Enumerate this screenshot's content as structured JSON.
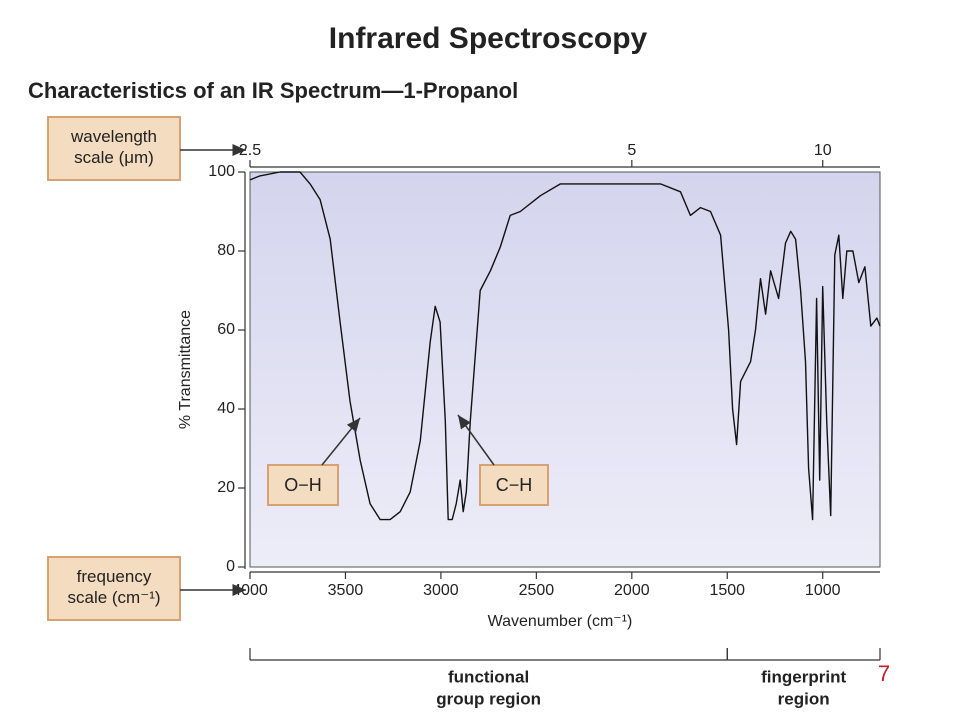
{
  "chart_data": {
    "type": "line",
    "title": "Infrared Spectroscopy",
    "subtitle": "Characteristics of an IR Spectrum—1-Propanol",
    "x_label": "Wavenumber (cm⁻¹)",
    "y_label": "% Transmittance",
    "x": [
      4000,
      3948,
      3843,
      3738,
      3685,
      3633,
      3580,
      3528,
      3476,
      3423,
      3371,
      3318,
      3266,
      3213,
      3161,
      3108,
      3056,
      3030,
      3004,
      2977,
      2962,
      2941,
      2920,
      2899,
      2883,
      2867,
      2846,
      2794,
      2741,
      2689,
      2637,
      2584,
      2479,
      2374,
      2270,
      2165,
      2060,
      1955,
      1850,
      1745,
      1693,
      1640,
      1588,
      1535,
      1493,
      1472,
      1451,
      1430,
      1378,
      1352,
      1326,
      1299,
      1273,
      1231,
      1195,
      1168,
      1142,
      1116,
      1090,
      1074,
      1053,
      1032,
      1016,
      1000,
      979,
      958,
      937,
      916,
      895,
      874,
      842,
      811,
      779,
      748,
      716,
      700
    ],
    "values": [
      98,
      99,
      100,
      100,
      97,
      93,
      83,
      62,
      42,
      27,
      16,
      12,
      12,
      14,
      19,
      32,
      57,
      66,
      62,
      37,
      12,
      12,
      16,
      22,
      14,
      19,
      37,
      70,
      75,
      81,
      89,
      90,
      94,
      97,
      97,
      97,
      97,
      97,
      97,
      95,
      89,
      91,
      90,
      84,
      60,
      40,
      31,
      47,
      52,
      60,
      73,
      64,
      75,
      68,
      82,
      85,
      83,
      70,
      52,
      25,
      12,
      68,
      22,
      71,
      37,
      13,
      79,
      84,
      68,
      80,
      80,
      72,
      76,
      61,
      63,
      61
    ],
    "color": "#111111",
    "xlim": [
      4000,
      700
    ],
    "xticks": [
      4000,
      3500,
      3000,
      2500,
      2000,
      1500,
      1000
    ],
    "ylim": [
      0,
      100
    ],
    "yticks": [
      0,
      20,
      40,
      60,
      80,
      100
    ],
    "x2ticks": [
      {
        "value": 4000,
        "label": "2.5"
      },
      {
        "value": 2000,
        "label": "5"
      },
      {
        "value": 1000,
        "label": "10"
      }
    ],
    "scale_notes": {
      "wavelength": "wavelength scale (μm)",
      "frequency": "frequency scale (cm⁻¹)"
    },
    "annotations": [
      "O−H",
      "C−H"
    ],
    "regions": [
      {
        "lines": [
          "functional",
          "group region"
        ],
        "from": 4000,
        "to": 1500
      },
      {
        "lines": [
          "fingerprint",
          "region"
        ],
        "from": 1500,
        "to": 700
      }
    ],
    "slide_number": "7"
  }
}
